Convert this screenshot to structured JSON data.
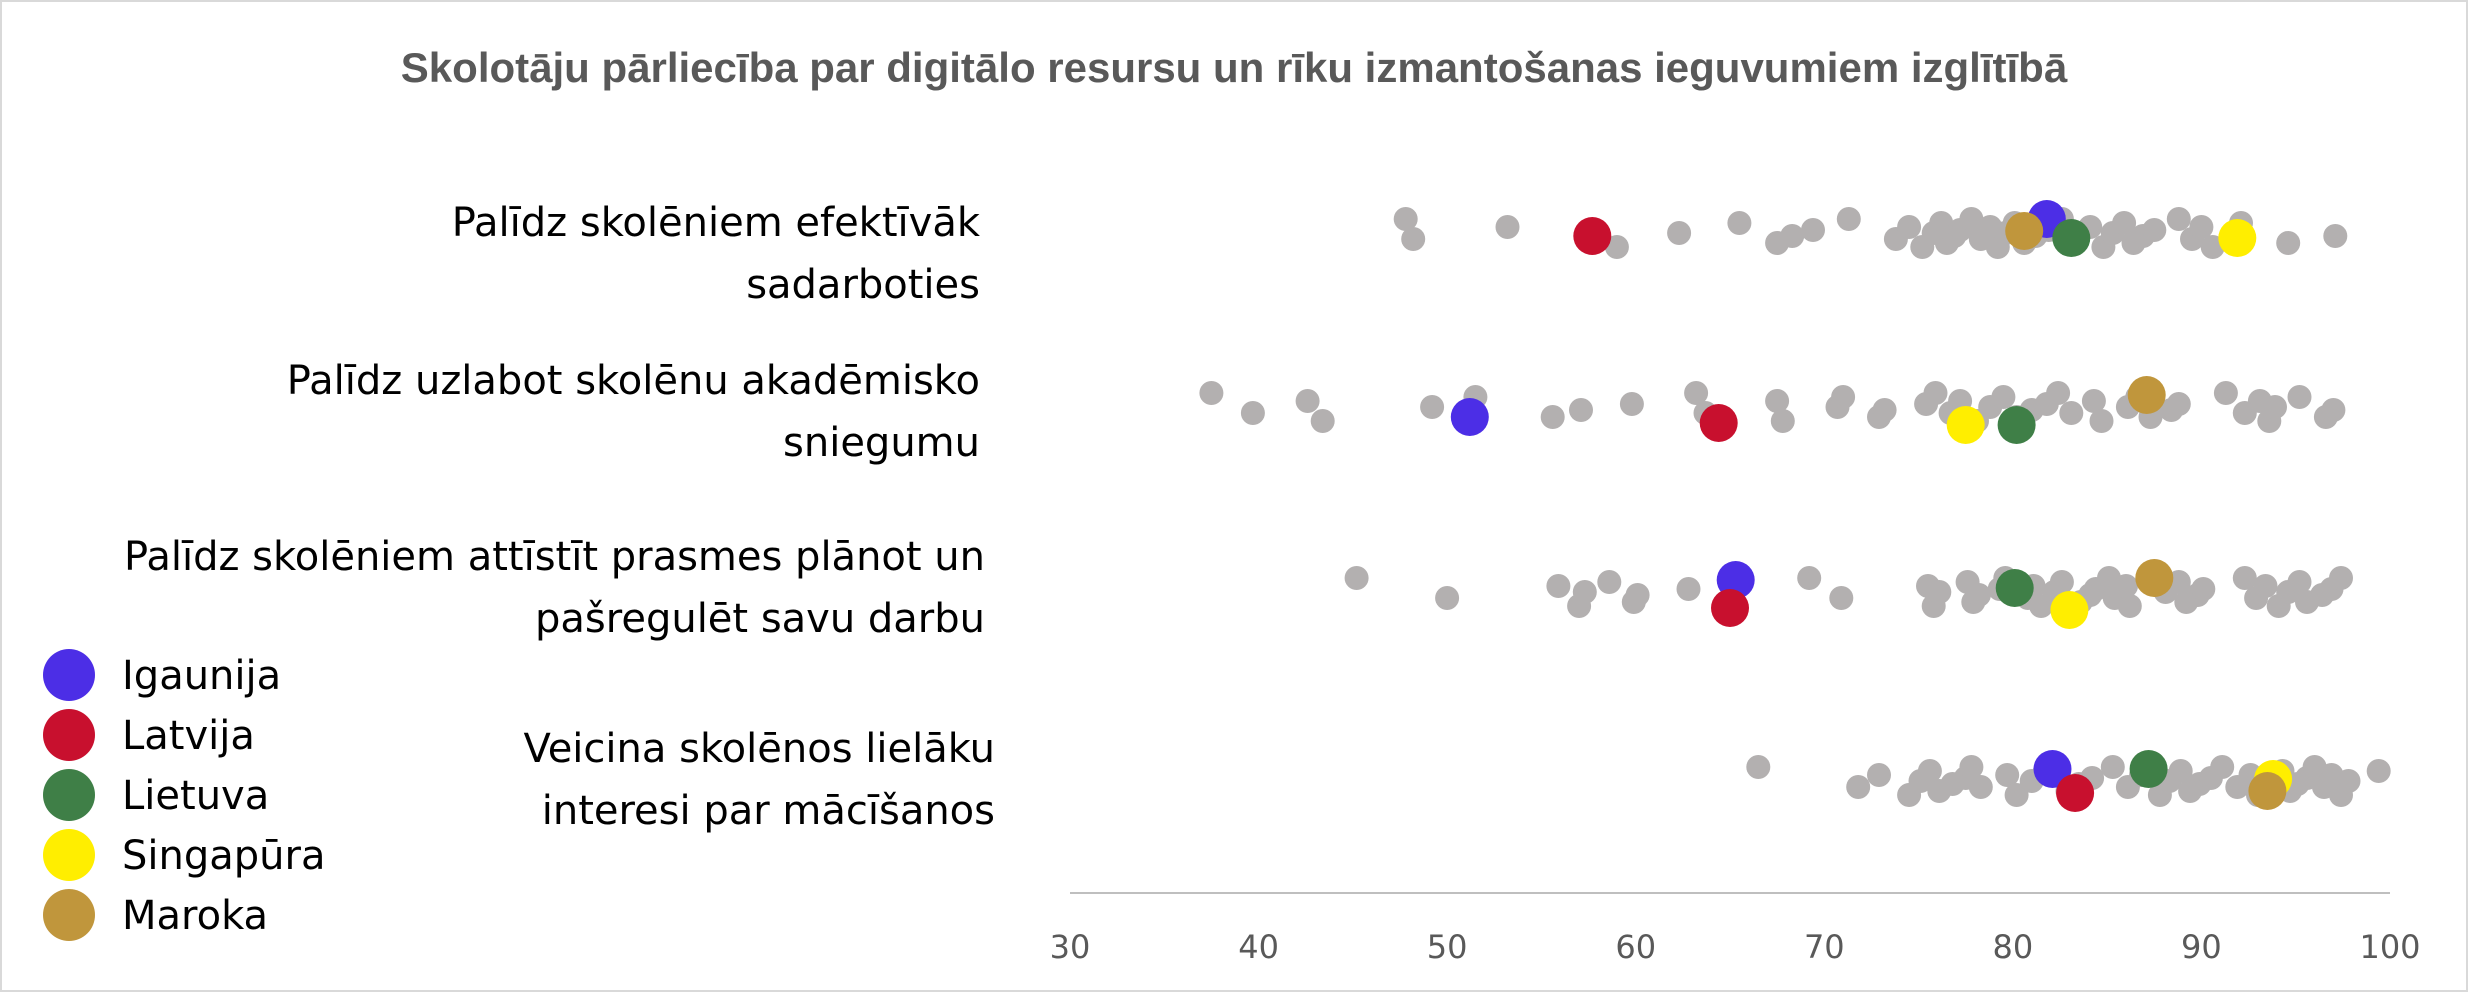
{
  "chart_data": {
    "type": "scatter",
    "title": "Skolotāju pārliecība par digitālo resursu un rīku izmantošanas ieguvumiem izglītībā",
    "xlabel": "",
    "ylabel": "",
    "xlim": [
      30,
      100
    ],
    "xticks": [
      30,
      40,
      50,
      60,
      70,
      80,
      90,
      100
    ],
    "legend_position": "bottom-left",
    "other_countries_color": "#b3b0b0",
    "categories": [
      [
        "Palīdz skolēniem efektīvāk",
        "sadarboties"
      ],
      [
        "Palīdz uzlabot skolēnu akadēmisko",
        "sniegumu"
      ],
      [
        "Palīdz skolēniem attīstīt prasmes plānot un",
        "pašregulēt savu darbu"
      ],
      [
        "Veicina skolēnos lielāku",
        "interesi par mācīšanos"
      ]
    ],
    "other_countries": [
      [
        47.8,
        48.2,
        53.2,
        59.0,
        62.3,
        65.5,
        67.5,
        68.3,
        69.4,
        71.3,
        73.8,
        74.5,
        75.2,
        75.8,
        76.2,
        76.5,
        76.9,
        77.2,
        77.8,
        78.3,
        78.8,
        79.2,
        79.6,
        80.1,
        80.6,
        81.2,
        81.9,
        82.6,
        83.3,
        84.1,
        84.8,
        85.3,
        85.9,
        86.4,
        86.9,
        87.5,
        88.8,
        89.5,
        90.0,
        90.6,
        91.7,
        92.1,
        94.6,
        97.1
      ],
      [
        37.5,
        39.7,
        42.6,
        43.4,
        49.2,
        51.5,
        55.6,
        57.1,
        59.8,
        63.2,
        63.7,
        67.5,
        67.8,
        70.7,
        71.0,
        72.9,
        73.2,
        75.4,
        75.9,
        76.7,
        77.2,
        78.1,
        78.8,
        79.5,
        80.2,
        81.0,
        81.8,
        82.4,
        83.1,
        84.3,
        84.7,
        86.1,
        86.6,
        87.3,
        88.4,
        88.8,
        91.3,
        92.3,
        93.1,
        93.6,
        93.9,
        95.2,
        96.6,
        97.0
      ],
      [
        45.2,
        50.0,
        55.9,
        57.0,
        57.3,
        58.6,
        59.9,
        60.1,
        62.8,
        69.2,
        70.9,
        75.5,
        75.8,
        76.1,
        77.6,
        77.9,
        78.2,
        79.3,
        79.6,
        80.8,
        81.1,
        81.5,
        82.2,
        82.6,
        83.6,
        84.1,
        84.4,
        85.1,
        85.4,
        86.0,
        86.2,
        88.1,
        88.8,
        89.2,
        89.8,
        90.1,
        92.3,
        92.9,
        93.4,
        94.1,
        94.6,
        95.2,
        95.6,
        96.4,
        96.9,
        97.4
      ],
      [
        66.5,
        71.8,
        72.9,
        74.5,
        75.1,
        75.6,
        76.1,
        76.8,
        77.5,
        77.8,
        78.3,
        79.7,
        80.2,
        81.0,
        81.7,
        82.9,
        83.5,
        84.2,
        85.3,
        86.1,
        86.8,
        87.8,
        88.3,
        88.9,
        89.4,
        89.9,
        90.5,
        91.1,
        91.9,
        92.6,
        93.0,
        93.4,
        94.3,
        94.7,
        95.1,
        95.6,
        96.0,
        96.5,
        96.9,
        97.4,
        97.8,
        99.4
      ]
    ],
    "series": [
      {
        "name": "Igaunija",
        "color": "#4c2ee6",
        "values": [
          81.8,
          51.2,
          65.3,
          82.1
        ]
      },
      {
        "name": "Latvija",
        "color": "#c8102e",
        "values": [
          57.7,
          64.4,
          65.0,
          83.3
        ]
      },
      {
        "name": "Lietuva",
        "color": "#3f7f47",
        "values": [
          83.1,
          80.2,
          80.1,
          87.2
        ]
      },
      {
        "name": "Singapūra",
        "color": "#ffee00",
        "values": [
          91.9,
          77.5,
          83.0,
          93.8
        ]
      },
      {
        "name": "Maroka",
        "color": "#c0963c",
        "values": [
          80.6,
          87.1,
          87.5,
          93.5
        ]
      }
    ]
  }
}
